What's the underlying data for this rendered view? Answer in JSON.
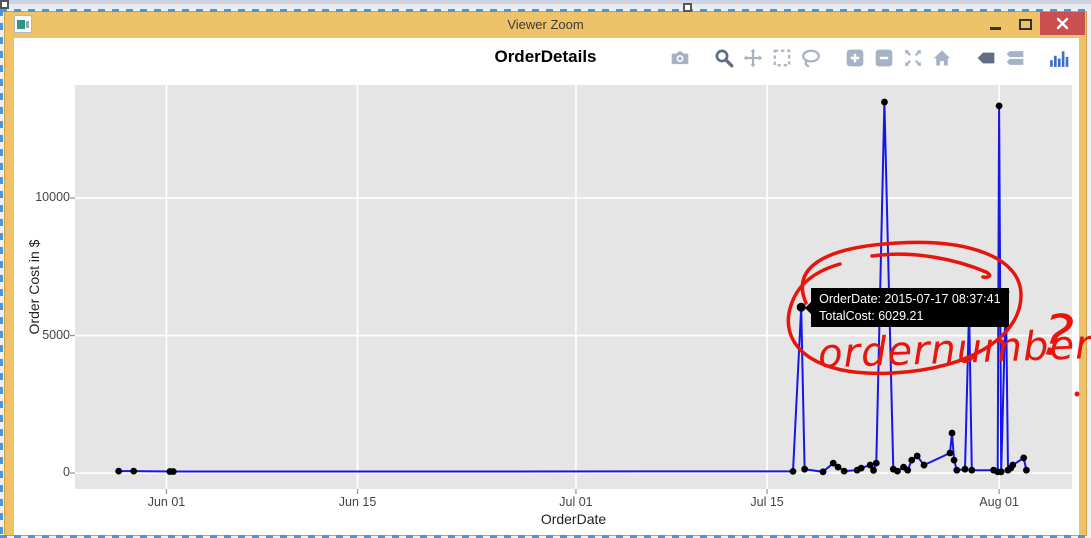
{
  "window": {
    "title": "Viewer Zoom",
    "controls": [
      "minimize",
      "maximize",
      "close"
    ]
  },
  "chart": {
    "title": "OrderDetails",
    "xaxis": {
      "title": "OrderDate",
      "ticks": [
        {
          "label": "Jun 01",
          "day": 0
        },
        {
          "label": "Jun 15",
          "day": 14
        },
        {
          "label": "Jul 01",
          "day": 30
        },
        {
          "label": "Jul 15",
          "day": 44
        },
        {
          "label": "Aug 01",
          "day": 61
        }
      ]
    },
    "yaxis": {
      "title": "Order Cost in $",
      "ticks": [
        {
          "label": "0",
          "value": 0
        },
        {
          "label": "5000",
          "value": 5000
        },
        {
          "label": "10000",
          "value": 10000
        }
      ]
    },
    "modebar_icons": [
      "camera",
      "zoom",
      "pan",
      "box-select",
      "lasso-select",
      "zoom-in",
      "zoom-out",
      "autoscale",
      "reset-axes-home",
      "hover-closest",
      "hover-compare",
      "plotly-logo"
    ],
    "modebar_active": [
      "zoom",
      "hover-closest"
    ]
  },
  "tooltip": {
    "line1": "OrderDate: 2015-07-17 08:37:41",
    "line2": "TotalCost: 6029.21"
  },
  "annotation": {
    "word": "ordernumber",
    "question_mark": "?"
  },
  "colors": {
    "titlebar": "#eec269",
    "close_button": "#c9504e",
    "plot_bg": "#e5e5e5",
    "grid": "#ffffff",
    "line": "#1616e8",
    "marker": "#000000",
    "tooltip_bg": "#000000",
    "tooltip_text": "#ffffff",
    "annotation_red": "#e8150d",
    "selection_blue": "#4a96d6"
  },
  "chart_data": {
    "type": "line",
    "title": "OrderDetails",
    "xlabel": "OrderDate",
    "ylabel": "Order Cost in $",
    "x_range_days": [
      -6.7,
      66.34
    ],
    "ylim": [
      -580,
      14110
    ],
    "grid": true,
    "hover_point": {
      "date": "2015-07-17 08:37:41",
      "value": 6029.21
    },
    "series": [
      {
        "name": "TotalCost",
        "points": [
          {
            "date": "2015-05-28",
            "day": -3.5,
            "value": 70
          },
          {
            "date": "2015-05-29",
            "day": -2.4,
            "value": 70
          },
          {
            "date": "2015-06-01",
            "day": 0.25,
            "value": 55
          },
          {
            "date": "2015-06-01",
            "day": 0.5,
            "value": 55
          },
          {
            "date": "2015-07-16",
            "day": 45.9,
            "value": 60
          },
          {
            "date": "2015-07-17 08:37:41",
            "day": 46.5,
            "value": 6029.21,
            "hover": true
          },
          {
            "date": "2015-07-17",
            "day": 46.75,
            "value": 140
          },
          {
            "date": "2015-07-19",
            "day": 48.1,
            "value": 45
          },
          {
            "date": "2015-07-19",
            "day": 48.85,
            "value": 360
          },
          {
            "date": "2015-07-20",
            "day": 49.2,
            "value": 215
          },
          {
            "date": "2015-07-20",
            "day": 49.65,
            "value": 70
          },
          {
            "date": "2015-07-21",
            "day": 50.6,
            "value": 105
          },
          {
            "date": "2015-07-22",
            "day": 50.9,
            "value": 180
          },
          {
            "date": "2015-07-22",
            "day": 51.55,
            "value": 290
          },
          {
            "date": "2015-07-23",
            "day": 51.8,
            "value": 100
          },
          {
            "date": "2015-07-23",
            "day": 52.0,
            "value": 360
          },
          {
            "date": "2015-07-24",
            "day": 52.6,
            "value": 13490
          },
          {
            "date": "2015-07-24",
            "day": 53.25,
            "value": 140
          },
          {
            "date": "2015-07-25",
            "day": 53.55,
            "value": 70
          },
          {
            "date": "2015-07-25",
            "day": 54.0,
            "value": 215
          },
          {
            "date": "2015-07-25",
            "day": 54.3,
            "value": 105
          },
          {
            "date": "2015-07-26",
            "day": 54.6,
            "value": 470
          },
          {
            "date": "2015-07-26",
            "day": 55.0,
            "value": 620
          },
          {
            "date": "2015-07-27",
            "day": 55.5,
            "value": 290
          },
          {
            "date": "2015-07-28",
            "day": 57.4,
            "value": 730
          },
          {
            "date": "2015-07-28",
            "day": 57.55,
            "value": 1455
          },
          {
            "date": "2015-07-29",
            "day": 57.7,
            "value": 470
          },
          {
            "date": "2015-07-29",
            "day": 57.9,
            "value": 105
          },
          {
            "date": "2015-07-29",
            "day": 58.5,
            "value": 140
          },
          {
            "date": "2015-07-30",
            "day": 58.8,
            "value": 6000
          },
          {
            "date": "2015-07-30",
            "day": 59.0,
            "value": 105
          },
          {
            "date": "2015-07-31",
            "day": 60.6,
            "value": 105
          },
          {
            "date": "2015-08-01",
            "day": 60.9,
            "value": 45
          },
          {
            "date": "2015-08-01",
            "day": 61.0,
            "value": 13350
          },
          {
            "date": "2015-08-01",
            "day": 61.15,
            "value": 45
          },
          {
            "date": "2015-08-01",
            "day": 61.5,
            "value": 6580
          },
          {
            "date": "2015-08-02",
            "day": 61.65,
            "value": 105
          },
          {
            "date": "2015-08-02",
            "day": 61.85,
            "value": 180
          },
          {
            "date": "2015-08-02",
            "day": 62.0,
            "value": 290
          },
          {
            "date": "2015-08-03",
            "day": 62.8,
            "value": 550
          },
          {
            "date": "2015-08-03",
            "day": 63.0,
            "value": 105
          }
        ]
      }
    ],
    "annotations": [
      {
        "type": "freehand-circle",
        "note": "red ink loop around tooltip"
      },
      {
        "type": "handwriting",
        "text": "ordernumber?"
      }
    ]
  }
}
